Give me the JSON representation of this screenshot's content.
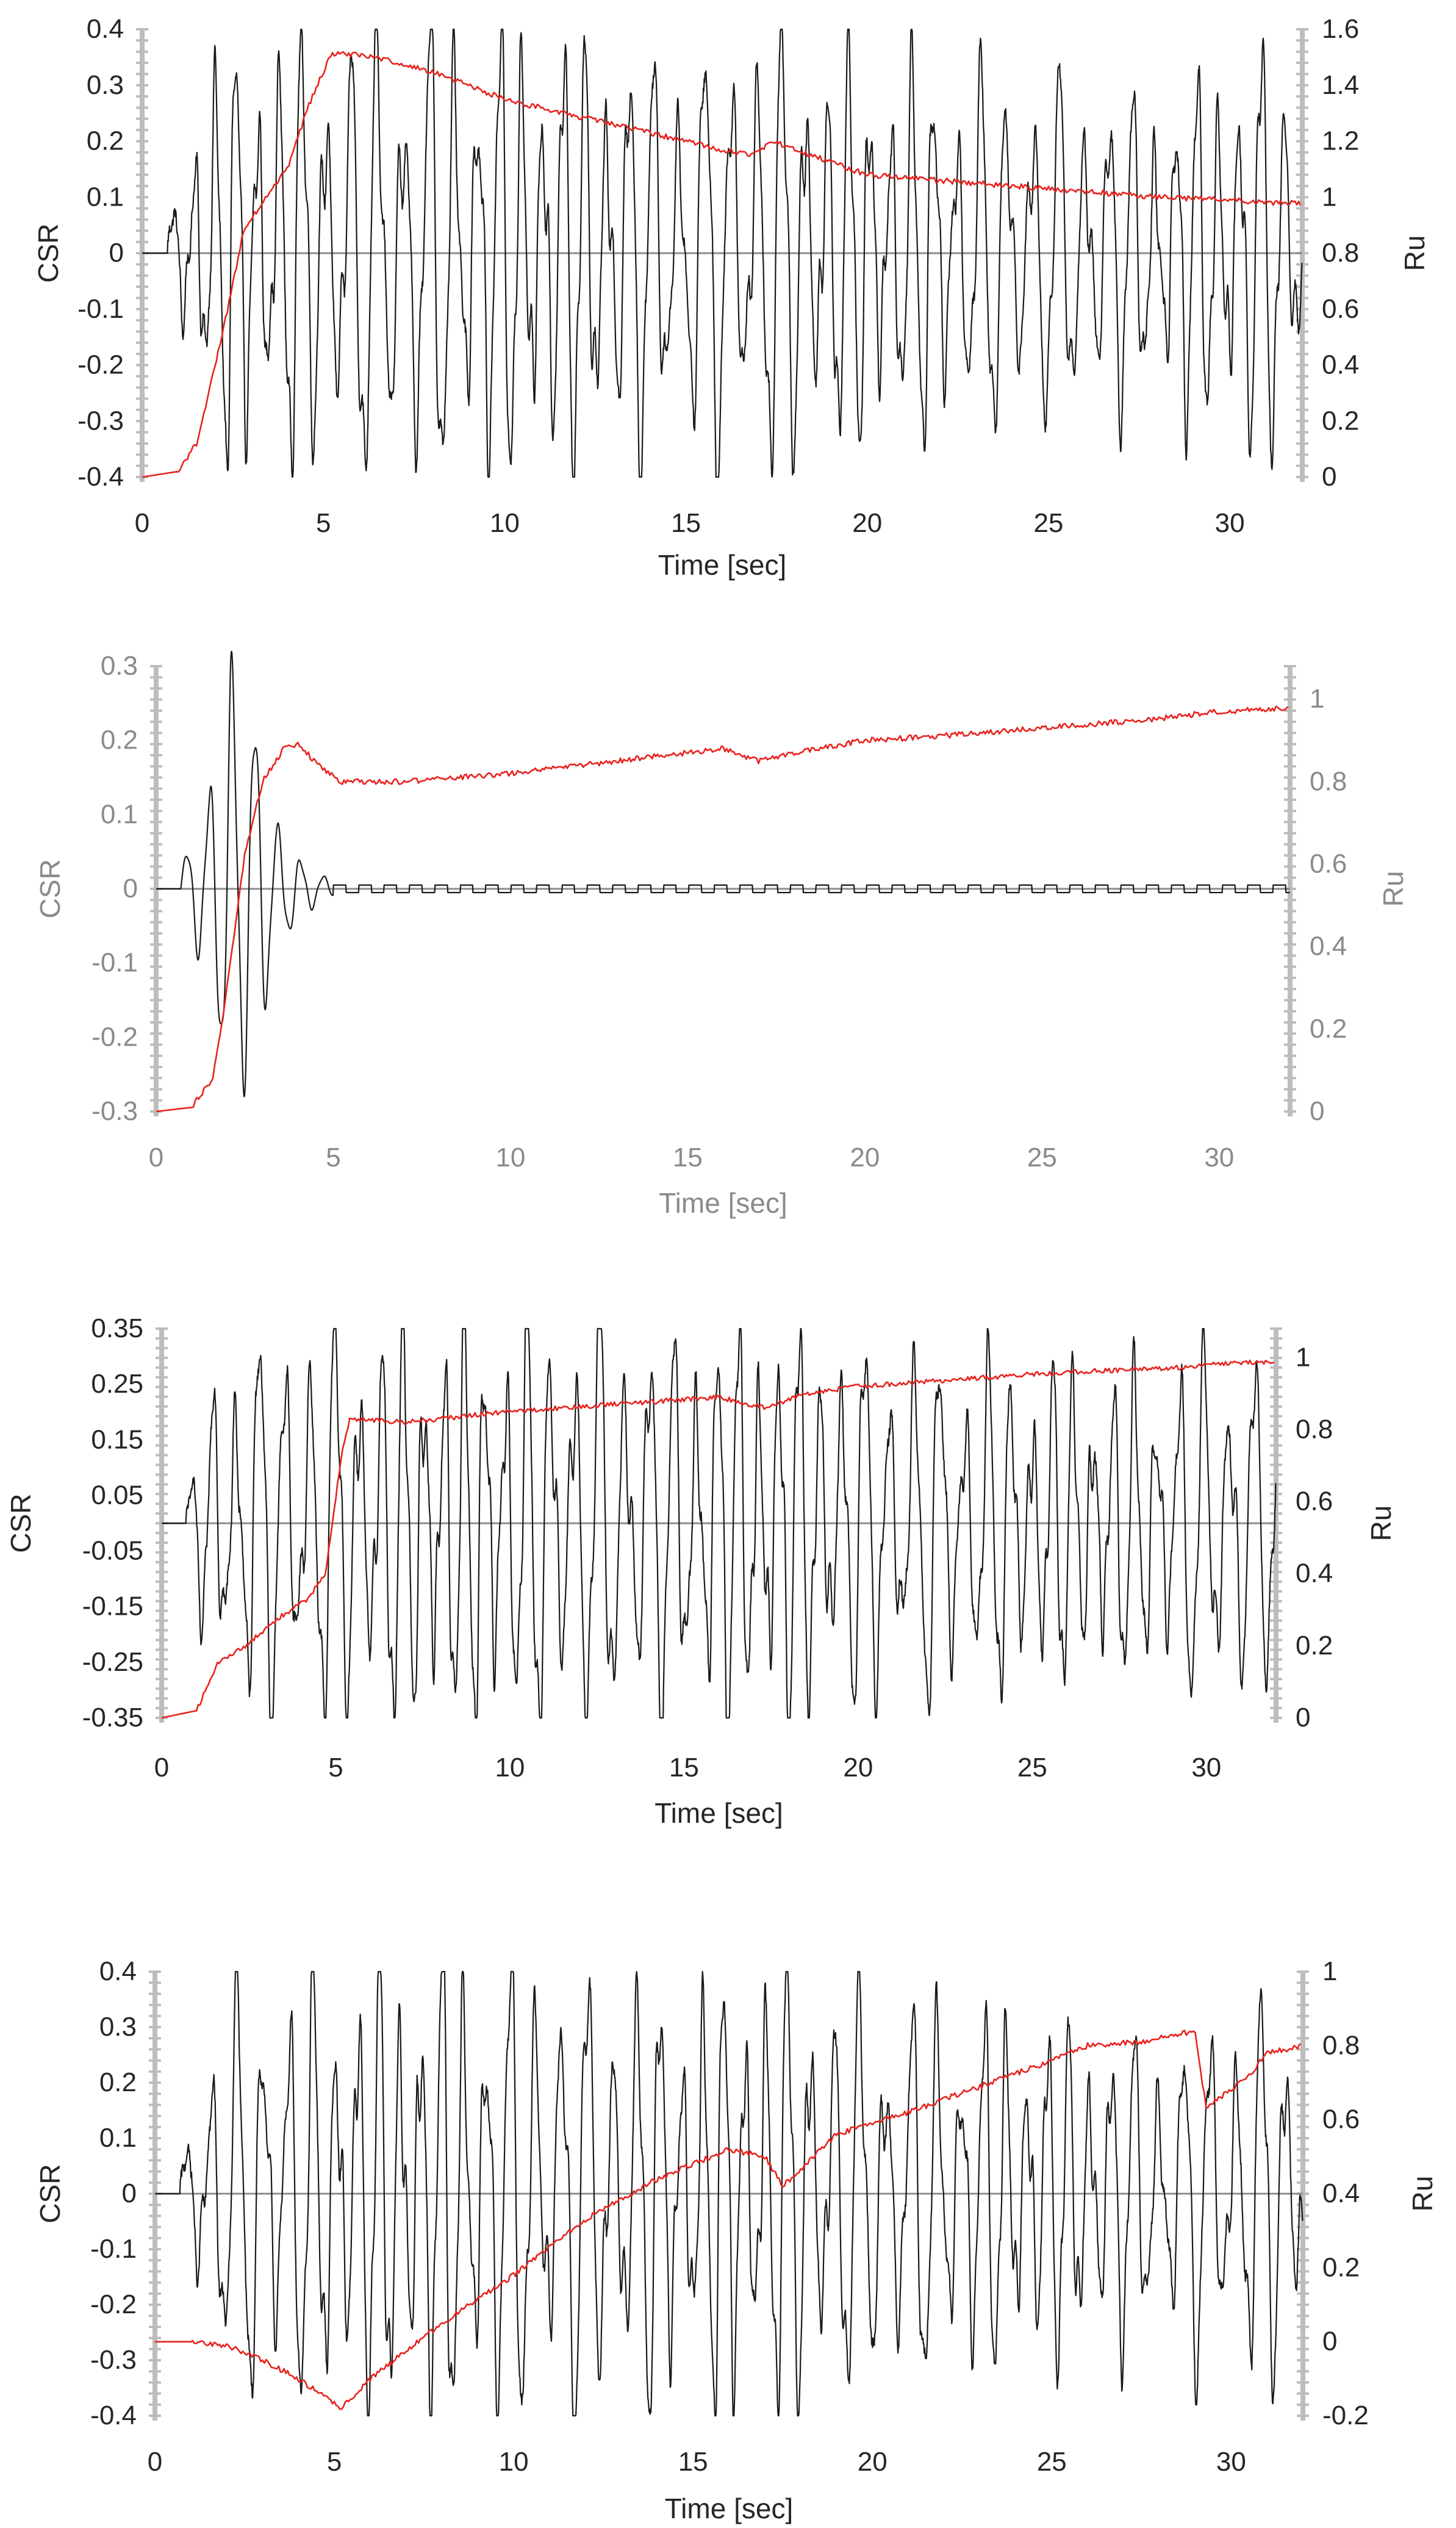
{
  "colors": {
    "csr": "#1a1a1a",
    "ru": "#e8231e",
    "axis_dark": "#262626",
    "axis_gray": "#8a8a8a",
    "axis_line": "#bdbdbd",
    "zero_line": "#8c8c8c"
  },
  "chart_data": [
    {
      "id": "panel-1",
      "type": "line",
      "title": "",
      "xlabel": "Time [sec]",
      "ylabel": "CSR",
      "y2label": "Ru",
      "label_tone": "dark",
      "xlim": [
        0,
        32
      ],
      "ylim": [
        -0.4,
        0.4
      ],
      "y2lim": [
        0,
        1.6
      ],
      "xticks": [
        "0",
        "5",
        "10",
        "15",
        "20",
        "25",
        "30"
      ],
      "yticks": [
        "-0.4",
        "-0.3",
        "-0.2",
        "-0.1",
        "0",
        "0.1",
        "0.2",
        "0.3",
        "0.4"
      ],
      "y2ticks": [
        "0",
        "0.2",
        "0.4",
        "0.6",
        "0.8",
        "1",
        "1.2",
        "1.4",
        "1.6"
      ],
      "series": [
        {
          "name": "CSR",
          "axis": "left",
          "model": "oscillation",
          "start": 0.7,
          "freq": 1.55,
          "amp": [
            [
              0.7,
              0.04
            ],
            [
              1.5,
              0.25
            ],
            [
              2.5,
              0.33
            ],
            [
              5,
              0.34
            ],
            [
              8,
              0.36
            ],
            [
              11,
              0.35
            ],
            [
              15,
              0.31
            ],
            [
              17,
              0.36
            ],
            [
              20,
              0.3
            ],
            [
              25,
              0.27
            ],
            [
              28,
              0.24
            ],
            [
              31,
              0.33
            ],
            [
              32,
              0.22
            ]
          ],
          "offset": 0.0
        },
        {
          "name": "Ru",
          "axis": "right",
          "model": "curve",
          "points": [
            [
              0,
              0
            ],
            [
              1,
              0.02
            ],
            [
              1.5,
              0.12
            ],
            [
              2.2,
              0.5
            ],
            [
              2.8,
              0.88
            ],
            [
              3.5,
              1.02
            ],
            [
              4,
              1.1
            ],
            [
              4.6,
              1.33
            ],
            [
              5.2,
              1.51
            ],
            [
              6,
              1.51
            ],
            [
              8,
              1.45
            ],
            [
              10,
              1.35
            ],
            [
              12,
              1.29
            ],
            [
              14,
              1.23
            ],
            [
              16,
              1.17
            ],
            [
              16.8,
              1.15
            ],
            [
              17.4,
              1.2
            ],
            [
              18,
              1.17
            ],
            [
              20,
              1.08
            ],
            [
              22,
              1.06
            ],
            [
              25,
              1.03
            ],
            [
              28,
              1.0
            ],
            [
              30,
              0.99
            ],
            [
              31,
              0.98
            ],
            [
              32,
              0.98
            ]
          ]
        }
      ]
    },
    {
      "id": "panel-2",
      "type": "line",
      "title": "",
      "xlabel": "Time [sec]",
      "ylabel": "CSR",
      "y2label": "Ru",
      "label_tone": "gray",
      "xlim": [
        0,
        32
      ],
      "ylim": [
        -0.3,
        0.3
      ],
      "y2lim": [
        0,
        1.08
      ],
      "xticks": [
        "0",
        "5",
        "10",
        "15",
        "20",
        "25",
        "30"
      ],
      "yticks": [
        "-0.3",
        "-0.2",
        "-0.1",
        "0",
        "0.1",
        "0.2",
        "0.3"
      ],
      "y2ticks": [
        "0",
        "0.2",
        "0.4",
        "0.6",
        "0.8",
        "1"
      ],
      "series": [
        {
          "name": "CSR",
          "axis": "left",
          "model": "transient",
          "start": 0.7,
          "freq": 1.55,
          "amp": [
            [
              0.7,
              0.03
            ],
            [
              1.5,
              0.12
            ],
            [
              2.1,
              0.29
            ],
            [
              2.8,
              0.22
            ],
            [
              3.4,
              0.08
            ],
            [
              4.2,
              0.03
            ],
            [
              5,
              0.01
            ],
            [
              32,
              0.005
            ]
          ],
          "step_amp": 0.005
        },
        {
          "name": "Ru",
          "axis": "right",
          "model": "curve",
          "points": [
            [
              0,
              0
            ],
            [
              1,
              0.01
            ],
            [
              1.6,
              0.08
            ],
            [
              2.0,
              0.3
            ],
            [
              2.5,
              0.62
            ],
            [
              3.0,
              0.8
            ],
            [
              3.6,
              0.88
            ],
            [
              4.0,
              0.89
            ],
            [
              4.6,
              0.84
            ],
            [
              5.2,
              0.8
            ],
            [
              7,
              0.8
            ],
            [
              10,
              0.82
            ],
            [
              12,
              0.84
            ],
            [
              14,
              0.86
            ],
            [
              16,
              0.88
            ],
            [
              17,
              0.85
            ],
            [
              18,
              0.87
            ],
            [
              20,
              0.9
            ],
            [
              22,
              0.91
            ],
            [
              25,
              0.93
            ],
            [
              28,
              0.95
            ],
            [
              30,
              0.97
            ],
            [
              32,
              0.98
            ]
          ]
        }
      ]
    },
    {
      "id": "panel-3",
      "type": "line",
      "title": "",
      "xlabel": "Time [sec]",
      "ylabel": "CSR",
      "y2label": "Ru",
      "label_tone": "dark",
      "xlim": [
        0,
        32
      ],
      "ylim": [
        -0.35,
        0.35
      ],
      "y2lim": [
        0,
        1.08
      ],
      "xticks": [
        "0",
        "5",
        "10",
        "15",
        "20",
        "25",
        "30"
      ],
      "yticks": [
        "-0.35",
        "-0.25",
        "-0.15",
        "-0.05",
        "0.05",
        "0.15",
        "0.25",
        "0.35"
      ],
      "y2ticks": [
        "0",
        "0.2",
        "0.4",
        "0.6",
        "0.8",
        "1"
      ],
      "series": [
        {
          "name": "CSR",
          "axis": "left",
          "model": "oscillation",
          "start": 0.7,
          "freq": 1.55,
          "amp": [
            [
              0.7,
              0.04
            ],
            [
              1.5,
              0.24
            ],
            [
              2.5,
              0.31
            ],
            [
              5,
              0.32
            ],
            [
              8,
              0.33
            ],
            [
              11,
              0.34
            ],
            [
              15,
              0.31
            ],
            [
              17,
              0.34
            ],
            [
              20,
              0.29
            ],
            [
              25,
              0.26
            ],
            [
              28,
              0.24
            ],
            [
              31,
              0.3
            ],
            [
              32,
              0.2
            ]
          ],
          "offset": -0.005
        },
        {
          "name": "Ru",
          "axis": "right",
          "model": "curve",
          "points": [
            [
              0,
              0
            ],
            [
              1,
              0.02
            ],
            [
              1.6,
              0.15
            ],
            [
              2.4,
              0.2
            ],
            [
              3.4,
              0.28
            ],
            [
              4.2,
              0.33
            ],
            [
              4.7,
              0.4
            ],
            [
              5.2,
              0.75
            ],
            [
              5.4,
              0.83
            ],
            [
              7,
              0.82
            ],
            [
              10,
              0.85
            ],
            [
              13,
              0.87
            ],
            [
              16,
              0.89
            ],
            [
              17.3,
              0.86
            ],
            [
              18.5,
              0.9
            ],
            [
              20,
              0.92
            ],
            [
              23,
              0.94
            ],
            [
              26,
              0.96
            ],
            [
              29,
              0.97
            ],
            [
              30,
              0.98
            ],
            [
              32,
              0.99
            ]
          ]
        }
      ]
    },
    {
      "id": "panel-4",
      "type": "line",
      "title": "",
      "xlabel": "Time [sec]",
      "ylabel": "CSR",
      "y2label": "Ru",
      "label_tone": "dark",
      "xlim": [
        0,
        32
      ],
      "ylim": [
        -0.4,
        0.4
      ],
      "y2lim": [
        -0.2,
        1.0
      ],
      "xticks": [
        "0",
        "5",
        "10",
        "15",
        "20",
        "25",
        "30"
      ],
      "yticks": [
        "-0.4",
        "-0.3",
        "-0.2",
        "-0.1",
        "0",
        "0.1",
        "0.2",
        "0.3",
        "0.4"
      ],
      "y2ticks": [
        "-0.2",
        "0",
        "0.2",
        "0.4",
        "0.6",
        "0.8",
        "1"
      ],
      "series": [
        {
          "name": "CSR",
          "axis": "left",
          "model": "oscillation",
          "start": 0.7,
          "freq": 1.55,
          "amp": [
            [
              0.7,
              0.04
            ],
            [
              1.5,
              0.26
            ],
            [
              2.5,
              0.33
            ],
            [
              5,
              0.34
            ],
            [
              8,
              0.38
            ],
            [
              11,
              0.36
            ],
            [
              15,
              0.32
            ],
            [
              17,
              0.37
            ],
            [
              20,
              0.31
            ],
            [
              25,
              0.27
            ],
            [
              28,
              0.24
            ],
            [
              31,
              0.31
            ],
            [
              32,
              0.22
            ]
          ],
          "offset": 0.0
        },
        {
          "name": "Ru",
          "axis": "right",
          "model": "curve",
          "points": [
            [
              0,
              0
            ],
            [
              1,
              0.0
            ],
            [
              2,
              -0.01
            ],
            [
              3,
              -0.05
            ],
            [
              4,
              -0.1
            ],
            [
              5.2,
              -0.18
            ],
            [
              6,
              -0.1
            ],
            [
              8,
              0.05
            ],
            [
              10,
              0.18
            ],
            [
              12,
              0.33
            ],
            [
              14,
              0.44
            ],
            [
              16,
              0.52
            ],
            [
              17,
              0.5
            ],
            [
              17.5,
              0.42
            ],
            [
              19,
              0.56
            ],
            [
              21,
              0.62
            ],
            [
              23,
              0.69
            ],
            [
              25,
              0.76
            ],
            [
              26,
              0.8
            ],
            [
              27.5,
              0.81
            ],
            [
              29,
              0.84
            ],
            [
              29.3,
              0.63
            ],
            [
              30.5,
              0.72
            ],
            [
              31,
              0.78
            ],
            [
              32,
              0.8
            ]
          ]
        }
      ]
    }
  ]
}
